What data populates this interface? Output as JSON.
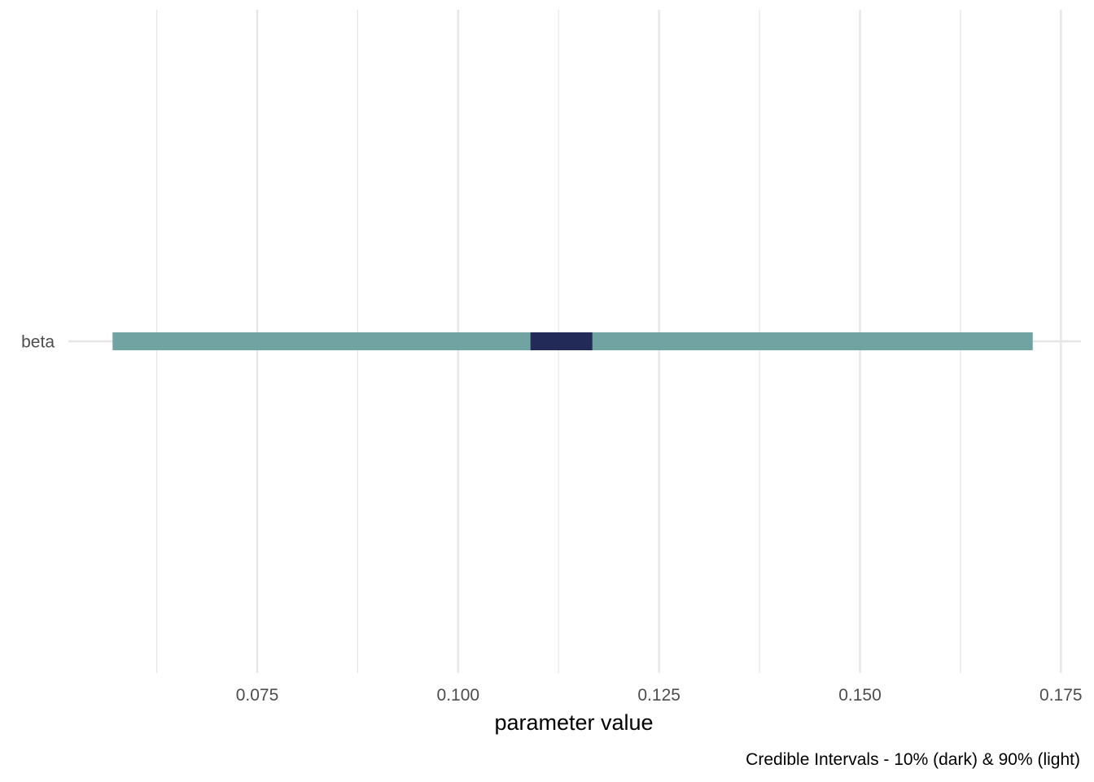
{
  "chart_data": {
    "type": "interval",
    "xlabel": "parameter value",
    "caption": "Credible Intervals - 10% (dark) & 90% (light)",
    "xlim": [
      0.0515,
      0.1775
    ],
    "x_ticks": [
      0.075,
      0.1,
      0.125,
      0.15,
      0.175
    ],
    "x_tick_labels": [
      "0.075",
      "0.100",
      "0.125",
      "0.150",
      "0.175"
    ],
    "x_minor_ticks": [
      0.0625,
      0.0875,
      0.1125,
      0.1375,
      0.1625
    ],
    "categories": [
      "beta"
    ],
    "intervals": [
      {
        "category": "beta",
        "outer": [
          0.057,
          0.1715
        ],
        "inner": [
          0.109,
          0.1167
        ]
      }
    ],
    "colors": {
      "outer": "#72a3a3",
      "inner": "#222b58",
      "grid": "#e6e6e6"
    },
    "grid": true
  }
}
